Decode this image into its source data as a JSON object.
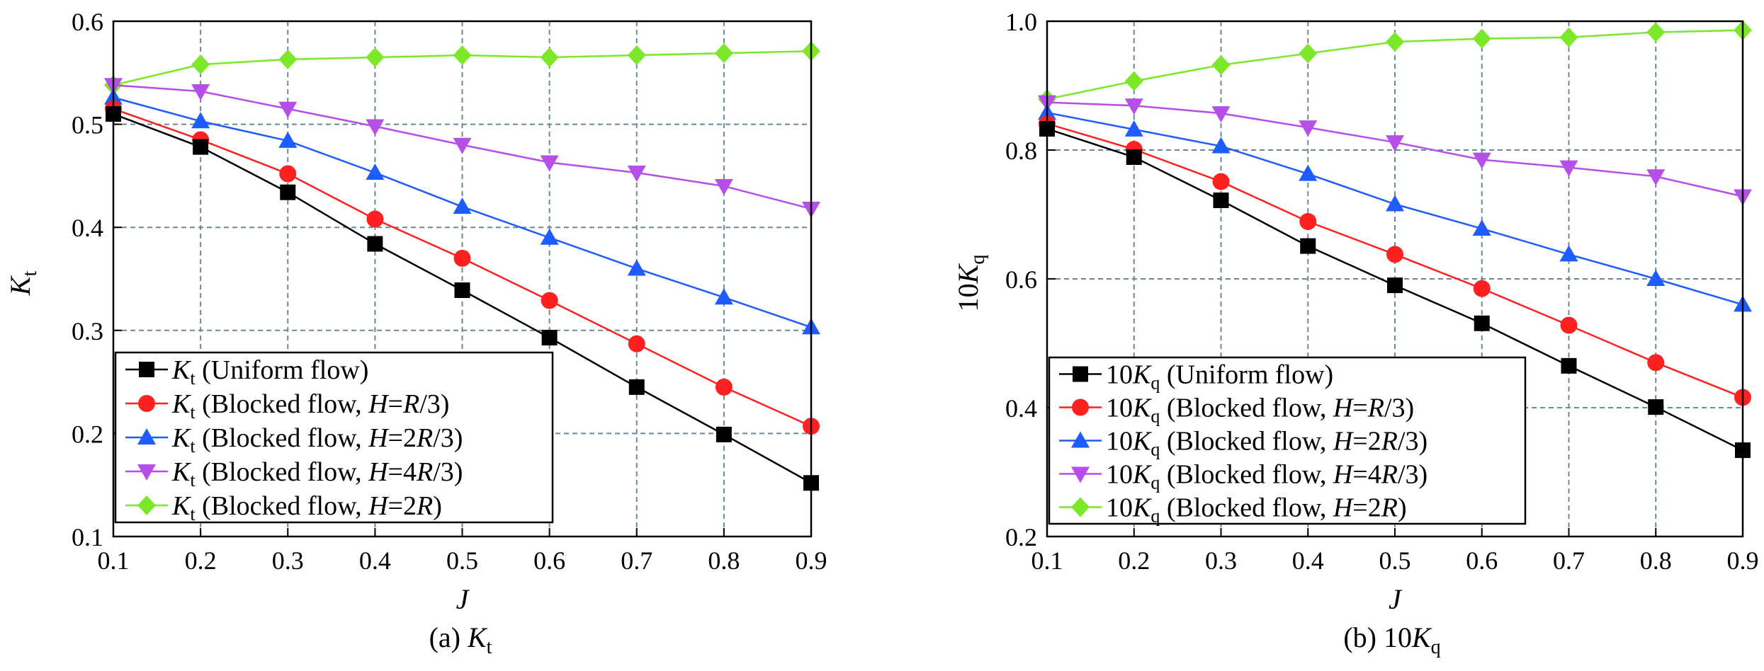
{
  "chart_data": [
    {
      "type": "line",
      "caption": {
        "prefix": "(a) ",
        "symbol": "K",
        "subscript": "t"
      },
      "xlabel": "J",
      "ylabel": {
        "symbol": "K",
        "subscript": "t"
      },
      "xlim": [
        0.1,
        0.9
      ],
      "ylim": [
        0.1,
        0.6
      ],
      "xticks": [
        "0.1",
        "0.2",
        "0.3",
        "0.4",
        "0.5",
        "0.6",
        "0.7",
        "0.8",
        "0.9"
      ],
      "yticks": [
        "0.1",
        "0.2",
        "0.3",
        "0.4",
        "0.5",
        "0.6"
      ],
      "grid": "dashed",
      "legend_position": "bottom-left",
      "x": [
        0.1,
        0.2,
        0.3,
        0.4,
        0.5,
        0.6,
        0.7,
        0.8,
        0.9
      ],
      "series": [
        {
          "legend": {
            "symbol": "K",
            "subscript": "t",
            "pre": " (Uniform flow)",
            "italic": "",
            "post": ""
          },
          "color": "#000000",
          "marker": "square",
          "values": [
            0.51,
            0.478,
            0.434,
            0.384,
            0.339,
            0.293,
            0.245,
            0.199,
            0.152
          ]
        },
        {
          "legend": {
            "symbol": "K",
            "subscript": "t",
            "pre": " (Blocked flow, ",
            "italic": "H",
            "post": "=R/3)"
          },
          "color": "#ff2020",
          "marker": "circle",
          "values": [
            0.515,
            0.485,
            0.452,
            0.408,
            0.37,
            0.329,
            0.287,
            0.245,
            0.207
          ]
        },
        {
          "legend": {
            "symbol": "K",
            "subscript": "t",
            "pre": " (Blocked flow, ",
            "italic": "H",
            "post": "=2R/3)"
          },
          "color": "#1f5cff",
          "marker": "triangle-up",
          "values": [
            0.526,
            0.503,
            0.484,
            0.453,
            0.42,
            0.39,
            0.36,
            0.332,
            0.303
          ]
        },
        {
          "legend": {
            "symbol": "K",
            "subscript": "t",
            "pre": " (Blocked flow, ",
            "italic": "H",
            "post": "=4R/3)"
          },
          "color": "#b54fe8",
          "marker": "triangle-down",
          "values": [
            0.538,
            0.532,
            0.515,
            0.498,
            0.48,
            0.463,
            0.453,
            0.44,
            0.418
          ]
        },
        {
          "legend": {
            "symbol": "K",
            "subscript": "t",
            "pre": " (Blocked flow, ",
            "italic": "H",
            "post": "=2R)"
          },
          "color": "#7de82a",
          "marker": "diamond",
          "values": [
            0.538,
            0.558,
            0.563,
            0.565,
            0.567,
            0.565,
            0.567,
            0.569,
            0.571
          ]
        }
      ]
    },
    {
      "type": "line",
      "caption": {
        "prefix": "(b) 10",
        "symbol": "K",
        "subscript": "q"
      },
      "xlabel": "J",
      "ylabel": {
        "prefix": "10",
        "symbol": "K",
        "subscript": "q"
      },
      "xlim": [
        0.1,
        0.9
      ],
      "ylim": [
        0.2,
        1.0
      ],
      "xticks": [
        "0.1",
        "0.2",
        "0.3",
        "0.4",
        "0.5",
        "0.6",
        "0.7",
        "0.8",
        "0.9"
      ],
      "yticks": [
        "0.2",
        "0.4",
        "0.6",
        "0.8",
        "1.0"
      ],
      "grid": "dashed",
      "legend_position": "bottom-left",
      "x": [
        0.1,
        0.2,
        0.3,
        0.4,
        0.5,
        0.6,
        0.7,
        0.8,
        0.9
      ],
      "series": [
        {
          "legend": {
            "prefix": "10",
            "symbol": "K",
            "subscript": "q",
            "pre": " (Uniform flow)",
            "italic": "",
            "post": ""
          },
          "color": "#000000",
          "marker": "square",
          "values": [
            0.833,
            0.789,
            0.722,
            0.651,
            0.59,
            0.531,
            0.465,
            0.401,
            0.334
          ]
        },
        {
          "legend": {
            "prefix": "10",
            "symbol": "K",
            "subscript": "q",
            "pre": " (Blocked flow, ",
            "italic": "H",
            "post": "=R/3)"
          },
          "color": "#ff2020",
          "marker": "circle",
          "values": [
            0.841,
            0.801,
            0.751,
            0.689,
            0.638,
            0.585,
            0.528,
            0.47,
            0.416
          ]
        },
        {
          "legend": {
            "prefix": "10",
            "symbol": "K",
            "subscript": "q",
            "pre": " (Blocked flow, ",
            "italic": "H",
            "post": "=2R/3)"
          },
          "color": "#1f5cff",
          "marker": "triangle-up",
          "values": [
            0.858,
            0.832,
            0.806,
            0.763,
            0.716,
            0.678,
            0.638,
            0.6,
            0.56
          ]
        },
        {
          "legend": {
            "prefix": "10",
            "symbol": "K",
            "subscript": "q",
            "pre": " (Blocked flow, ",
            "italic": "H",
            "post": "=4R/3)"
          },
          "color": "#b54fe8",
          "marker": "triangle-down",
          "values": [
            0.874,
            0.869,
            0.857,
            0.835,
            0.812,
            0.785,
            0.773,
            0.759,
            0.728
          ]
        },
        {
          "legend": {
            "prefix": "10",
            "symbol": "K",
            "subscript": "q",
            "pre": " (Blocked flow, ",
            "italic": "H",
            "post": "=2R)"
          },
          "color": "#7de82a",
          "marker": "diamond",
          "values": [
            0.879,
            0.907,
            0.932,
            0.95,
            0.968,
            0.973,
            0.975,
            0.983,
            0.986
          ]
        }
      ]
    }
  ]
}
